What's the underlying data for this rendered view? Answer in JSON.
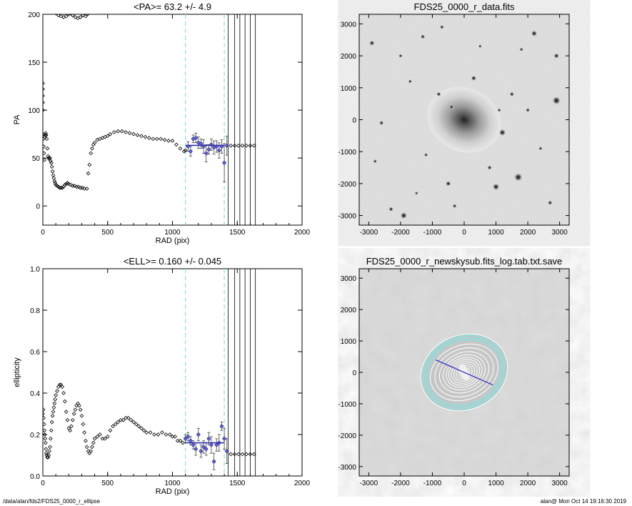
{
  "footer": {
    "path": "/data/alan/fds2/FDS25_0000_r_ellipse",
    "stamp": "alan@  Mon Oct 14 19:16:30 2019"
  },
  "chart_data": [
    {
      "type": "scatter",
      "title": "<PA>=  63.2 +/-   4.9",
      "xlabel": "RAD (pix)",
      "ylabel": "PA",
      "xlim": [
        0,
        2000
      ],
      "ylim": [
        -20,
        200
      ],
      "xticks": [
        0,
        500,
        1000,
        1500,
        2000
      ],
      "yticks": [
        0,
        50,
        100,
        150,
        200
      ],
      "cyan_dashed_x": [
        1100,
        1400
      ],
      "vertical_lines_x": [
        1430,
        1480,
        1520,
        1560,
        1600,
        1640
      ],
      "mean_line": {
        "x": [
          1100,
          1400
        ],
        "y": 63.2
      },
      "points": [
        [
          0,
          75
        ],
        [
          3,
          70
        ],
        [
          6,
          62
        ],
        [
          9,
          55
        ],
        [
          12,
          48
        ],
        [
          15,
          72
        ],
        [
          18,
          74
        ],
        [
          22,
          76
        ],
        [
          26,
          74
        ],
        [
          30,
          70
        ],
        [
          35,
          60
        ],
        [
          40,
          52
        ],
        [
          45,
          50
        ],
        [
          50,
          49
        ],
        [
          55,
          50
        ],
        [
          60,
          47
        ],
        [
          65,
          45
        ],
        [
          70,
          41
        ],
        [
          75,
          36
        ],
        [
          80,
          32
        ],
        [
          85,
          29
        ],
        [
          90,
          26
        ],
        [
          95,
          24
        ],
        [
          100,
          22
        ],
        [
          110,
          21
        ],
        [
          120,
          20
        ],
        [
          130,
          19
        ],
        [
          140,
          19
        ],
        [
          150,
          19
        ],
        [
          160,
          20
        ],
        [
          170,
          22
        ],
        [
          180,
          23
        ],
        [
          190,
          24
        ],
        [
          200,
          23
        ],
        [
          215,
          22
        ],
        [
          230,
          21
        ],
        [
          245,
          21
        ],
        [
          260,
          20
        ],
        [
          275,
          20
        ],
        [
          290,
          19
        ],
        [
          305,
          19
        ],
        [
          320,
          18
        ],
        [
          340,
          18
        ],
        [
          350,
          34
        ],
        [
          360,
          43
        ],
        [
          370,
          55
        ],
        [
          380,
          60
        ],
        [
          390,
          64
        ],
        [
          400,
          66
        ],
        [
          420,
          69
        ],
        [
          440,
          70
        ],
        [
          460,
          71
        ],
        [
          480,
          72
        ],
        [
          500,
          73
        ],
        [
          520,
          75
        ],
        [
          550,
          77
        ],
        [
          580,
          78
        ],
        [
          610,
          78
        ],
        [
          640,
          77
        ],
        [
          670,
          76
        ],
        [
          700,
          75
        ],
        [
          730,
          74
        ],
        [
          760,
          73
        ],
        [
          790,
          72
        ],
        [
          820,
          71
        ],
        [
          850,
          70
        ],
        [
          880,
          70
        ],
        [
          910,
          70
        ],
        [
          940,
          69
        ],
        [
          970,
          68
        ],
        [
          1000,
          68
        ],
        [
          1030,
          64
        ],
        [
          1060,
          60
        ],
        [
          1090,
          57
        ],
        [
          1100,
          58
        ],
        [
          1120,
          62
        ],
        [
          1140,
          57
        ],
        [
          1160,
          70
        ],
        [
          1180,
          71
        ],
        [
          1200,
          66
        ],
        [
          1220,
          65
        ],
        [
          1240,
          62
        ],
        [
          1260,
          55
        ],
        [
          1280,
          59
        ],
        [
          1300,
          64
        ],
        [
          1320,
          61
        ],
        [
          1340,
          62
        ],
        [
          1360,
          58
        ],
        [
          1380,
          62
        ],
        [
          1400,
          45
        ],
        [
          1420,
          63
        ],
        [
          1450,
          63
        ],
        [
          1480,
          63
        ],
        [
          1510,
          63
        ],
        [
          1540,
          63
        ],
        [
          1570,
          63
        ],
        [
          1600,
          63
        ],
        [
          1630,
          63
        ]
      ],
      "spike_points": [
        [
          0,
          115
        ],
        [
          0,
          122
        ],
        [
          0,
          128
        ],
        [
          0,
          108
        ],
        [
          0,
          100
        ]
      ],
      "top_points": [
        [
          100,
          201
        ],
        [
          120,
          199
        ],
        [
          140,
          198
        ],
        [
          160,
          197
        ],
        [
          180,
          198
        ],
        [
          200,
          200
        ],
        [
          215,
          201
        ],
        [
          230,
          199
        ],
        [
          250,
          197
        ],
        [
          270,
          196
        ],
        [
          290,
          197
        ],
        [
          310,
          199
        ],
        [
          330,
          198
        ],
        [
          345,
          200
        ]
      ],
      "errorbars": [
        [
          1120,
          62,
          5
        ],
        [
          1140,
          57,
          5
        ],
        [
          1160,
          70,
          4
        ],
        [
          1180,
          71,
          5
        ],
        [
          1200,
          66,
          6
        ],
        [
          1220,
          65,
          5
        ],
        [
          1240,
          62,
          7
        ],
        [
          1260,
          55,
          9
        ],
        [
          1280,
          59,
          5
        ],
        [
          1300,
          64,
          6
        ],
        [
          1320,
          61,
          7
        ],
        [
          1340,
          62,
          6
        ],
        [
          1360,
          58,
          8
        ],
        [
          1380,
          62,
          7
        ],
        [
          1400,
          45,
          20
        ],
        [
          1420,
          63,
          10
        ]
      ]
    },
    {
      "type": "image",
      "title": "FDS25_0000_r_data.fits",
      "xlim": [
        -3300,
        3300
      ],
      "ylim": [
        -3300,
        3300
      ],
      "xticks": [
        -3000,
        -2000,
        -1000,
        0,
        1000,
        2000,
        3000
      ],
      "yticks": [
        -3000,
        -2000,
        -1000,
        0,
        1000,
        2000,
        3000
      ],
      "stars": [
        [
          -2900,
          2400,
          70
        ],
        [
          -1300,
          2600,
          60
        ],
        [
          -700,
          2900,
          55
        ],
        [
          2200,
          2700,
          80
        ],
        [
          2900,
          2000,
          70
        ],
        [
          -2600,
          -100,
          60
        ],
        [
          -2800,
          -1300,
          50
        ],
        [
          -1900,
          -3000,
          90
        ],
        [
          -2300,
          -2800,
          60
        ],
        [
          -500,
          -2000,
          70
        ],
        [
          1000,
          -2100,
          90
        ],
        [
          1700,
          -1800,
          110
        ],
        [
          1200,
          -400,
          90
        ],
        [
          2900,
          600,
          110
        ],
        [
          -800,
          800,
          60
        ],
        [
          300,
          1300,
          70
        ],
        [
          800,
          -1500,
          60
        ],
        [
          -1700,
          1200,
          50
        ],
        [
          2400,
          -900,
          50
        ],
        [
          2000,
          300,
          55
        ],
        [
          -300,
          -2700,
          55
        ],
        [
          2700,
          -2600,
          60
        ],
        [
          -1200,
          -1100,
          50
        ],
        [
          1500,
          800,
          60
        ],
        [
          -2000,
          2000,
          50
        ],
        [
          500,
          2300,
          45
        ],
        [
          1800,
          2200,
          50
        ],
        [
          -400,
          400,
          55
        ],
        [
          1100,
          300,
          50
        ],
        [
          -1500,
          -2300,
          45
        ]
      ]
    },
    {
      "type": "scatter",
      "title": "<ELL>= 0.160 +/-  0.045",
      "xlabel": "RAD (pix)",
      "ylabel": "ellipticity",
      "xlim": [
        0,
        2000
      ],
      "ylim": [
        0,
        1
      ],
      "xticks": [
        0,
        500,
        1000,
        1500,
        2000
      ],
      "yticks": [
        0.0,
        0.2,
        0.4,
        0.6,
        0.8,
        1.0
      ],
      "cyan_dashed_x": [
        1100,
        1400
      ],
      "vertical_lines_x": [
        1430,
        1480,
        1520,
        1560,
        1600,
        1640
      ],
      "mean_line": {
        "x": [
          1100,
          1400
        ],
        "y": 0.16
      },
      "points": [
        [
          0,
          0.3
        ],
        [
          3,
          0.32
        ],
        [
          6,
          0.28
        ],
        [
          9,
          0.25
        ],
        [
          12,
          0.22
        ],
        [
          15,
          0.2
        ],
        [
          18,
          0.18
        ],
        [
          21,
          0.16
        ],
        [
          24,
          0.13
        ],
        [
          27,
          0.11
        ],
        [
          30,
          0.1
        ],
        [
          35,
          0.09
        ],
        [
          40,
          0.09
        ],
        [
          45,
          0.1
        ],
        [
          50,
          0.12
        ],
        [
          55,
          0.14
        ],
        [
          60,
          0.18
        ],
        [
          65,
          0.22
        ],
        [
          70,
          0.26
        ],
        [
          75,
          0.29
        ],
        [
          80,
          0.31
        ],
        [
          85,
          0.33
        ],
        [
          90,
          0.35
        ],
        [
          95,
          0.37
        ],
        [
          100,
          0.39
        ],
        [
          110,
          0.41
        ],
        [
          120,
          0.43
        ],
        [
          130,
          0.44
        ],
        [
          140,
          0.44
        ],
        [
          150,
          0.43
        ],
        [
          160,
          0.4
        ],
        [
          170,
          0.36
        ],
        [
          180,
          0.31
        ],
        [
          190,
          0.27
        ],
        [
          200,
          0.23
        ],
        [
          210,
          0.22
        ],
        [
          220,
          0.24
        ],
        [
          230,
          0.27
        ],
        [
          240,
          0.3
        ],
        [
          250,
          0.32
        ],
        [
          260,
          0.34
        ],
        [
          270,
          0.35
        ],
        [
          280,
          0.34
        ],
        [
          290,
          0.32
        ],
        [
          300,
          0.29
        ],
        [
          310,
          0.25
        ],
        [
          320,
          0.21
        ],
        [
          330,
          0.17
        ],
        [
          340,
          0.14
        ],
        [
          350,
          0.12
        ],
        [
          360,
          0.11
        ],
        [
          370,
          0.12
        ],
        [
          380,
          0.14
        ],
        [
          390,
          0.16
        ],
        [
          400,
          0.18
        ],
        [
          420,
          0.19
        ],
        [
          440,
          0.2
        ],
        [
          460,
          0.18
        ],
        [
          480,
          0.18
        ],
        [
          500,
          0.19
        ],
        [
          520,
          0.22
        ],
        [
          540,
          0.24
        ],
        [
          560,
          0.25
        ],
        [
          580,
          0.26
        ],
        [
          600,
          0.27
        ],
        [
          620,
          0.27
        ],
        [
          640,
          0.28
        ],
        [
          660,
          0.28
        ],
        [
          680,
          0.27
        ],
        [
          700,
          0.26
        ],
        [
          720,
          0.25
        ],
        [
          740,
          0.24
        ],
        [
          760,
          0.23
        ],
        [
          780,
          0.22
        ],
        [
          800,
          0.21
        ],
        [
          830,
          0.21
        ],
        [
          860,
          0.2
        ],
        [
          890,
          0.2
        ],
        [
          920,
          0.21
        ],
        [
          950,
          0.2
        ],
        [
          980,
          0.2
        ],
        [
          1000,
          0.19
        ],
        [
          1020,
          0.19
        ],
        [
          1040,
          0.17
        ],
        [
          1060,
          0.17
        ],
        [
          1080,
          0.16
        ],
        [
          1100,
          0.18
        ],
        [
          1120,
          0.19
        ],
        [
          1140,
          0.17
        ],
        [
          1160,
          0.15
        ],
        [
          1180,
          0.13
        ],
        [
          1200,
          0.2
        ],
        [
          1220,
          0.12
        ],
        [
          1240,
          0.14
        ],
        [
          1260,
          0.13
        ],
        [
          1280,
          0.18
        ],
        [
          1300,
          0.15
        ],
        [
          1320,
          0.07
        ],
        [
          1340,
          0.15
        ],
        [
          1360,
          0.16
        ],
        [
          1380,
          0.24
        ],
        [
          1400,
          0.18
        ],
        [
          1420,
          0.12
        ],
        [
          1450,
          0.105
        ],
        [
          1480,
          0.105
        ],
        [
          1510,
          0.105
        ],
        [
          1540,
          0.105
        ],
        [
          1570,
          0.105
        ],
        [
          1600,
          0.105
        ],
        [
          1630,
          0.105
        ]
      ],
      "errorbars": [
        [
          1100,
          0.18,
          0.02
        ],
        [
          1120,
          0.19,
          0.02
        ],
        [
          1140,
          0.17,
          0.02
        ],
        [
          1160,
          0.15,
          0.02
        ],
        [
          1180,
          0.13,
          0.03
        ],
        [
          1200,
          0.2,
          0.03
        ],
        [
          1220,
          0.12,
          0.03
        ],
        [
          1240,
          0.14,
          0.03
        ],
        [
          1260,
          0.13,
          0.03
        ],
        [
          1280,
          0.18,
          0.03
        ],
        [
          1300,
          0.15,
          0.04
        ],
        [
          1320,
          0.07,
          0.04
        ],
        [
          1340,
          0.15,
          0.03
        ],
        [
          1360,
          0.16,
          0.04
        ],
        [
          1380,
          0.24,
          0.02
        ],
        [
          1400,
          0.18,
          0.05
        ],
        [
          1420,
          0.12,
          0.06
        ]
      ]
    },
    {
      "type": "image",
      "title": "FDS25_0000_r_newskysub.fits_log.tab.txt.save",
      "xlim": [
        -3300,
        3300
      ],
      "ylim": [
        -3300,
        3300
      ],
      "xticks": [
        -3000,
        -2000,
        -1000,
        0,
        1000,
        2000,
        3000
      ],
      "yticks": [
        -3000,
        -2000,
        -1000,
        0,
        1000,
        2000,
        3000
      ],
      "major_axis": {
        "x": [
          -900,
          900
        ],
        "y": [
          400,
          -400
        ]
      },
      "white_isophote_semimajor": [
        100,
        180,
        260,
        340,
        420,
        500,
        580,
        680,
        800,
        950,
        1100
      ],
      "cyan_isophote_semimajor": [
        1180,
        1260,
        1340
      ],
      "outer_isophote_semimajor": 1400,
      "pa_deg": -23,
      "ellipticity": 0.16
    }
  ]
}
